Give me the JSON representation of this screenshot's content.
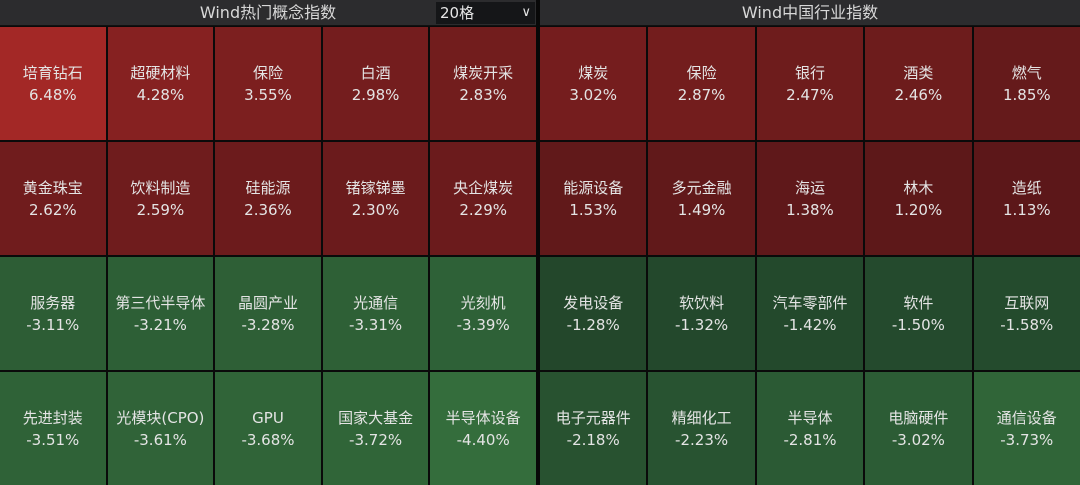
{
  "left": {
    "title": "Wind热门概念指数",
    "dropdown": {
      "selected": "20格"
    },
    "cells": [
      {
        "name": "培育钻石",
        "value": "6.48%"
      },
      {
        "name": "超硬材料",
        "value": "4.28%"
      },
      {
        "name": "保险",
        "value": "3.55%"
      },
      {
        "name": "白酒",
        "value": "2.98%"
      },
      {
        "name": "煤炭开采",
        "value": "2.83%"
      },
      {
        "name": "黄金珠宝",
        "value": "2.62%"
      },
      {
        "name": "饮料制造",
        "value": "2.59%"
      },
      {
        "name": "硅能源",
        "value": "2.36%"
      },
      {
        "name": "锗镓锑墨",
        "value": "2.30%"
      },
      {
        "name": "央企煤炭",
        "value": "2.29%"
      },
      {
        "name": "服务器",
        "value": "-3.11%"
      },
      {
        "name": "第三代半导体",
        "value": "-3.21%"
      },
      {
        "name": "晶圆产业",
        "value": "-3.28%"
      },
      {
        "name": "光通信",
        "value": "-3.31%"
      },
      {
        "name": "光刻机",
        "value": "-3.39%"
      },
      {
        "name": "先进封装",
        "value": "-3.51%"
      },
      {
        "name": "光模块(CPO)",
        "value": "-3.61%"
      },
      {
        "name": "GPU",
        "value": "-3.68%"
      },
      {
        "name": "国家大基金",
        "value": "-3.72%"
      },
      {
        "name": "半导体设备",
        "value": "-4.40%"
      }
    ]
  },
  "right": {
    "title": "Wind中国行业指数",
    "cells": [
      {
        "name": "煤炭",
        "value": "3.02%"
      },
      {
        "name": "保险",
        "value": "2.87%"
      },
      {
        "name": "银行",
        "value": "2.47%"
      },
      {
        "name": "酒类",
        "value": "2.46%"
      },
      {
        "name": "燃气",
        "value": "1.85%"
      },
      {
        "name": "能源设备",
        "value": "1.53%"
      },
      {
        "name": "多元金融",
        "value": "1.49%"
      },
      {
        "name": "海运",
        "value": "1.38%"
      },
      {
        "name": "林木",
        "value": "1.20%"
      },
      {
        "name": "造纸",
        "value": "1.13%"
      },
      {
        "name": "发电设备",
        "value": "-1.28%"
      },
      {
        "name": "软饮料",
        "value": "-1.32%"
      },
      {
        "name": "汽车零部件",
        "value": "-1.42%"
      },
      {
        "name": "软件",
        "value": "-1.50%"
      },
      {
        "name": "互联网",
        "value": "-1.58%"
      },
      {
        "name": "电子元器件",
        "value": "-2.18%"
      },
      {
        "name": "精细化工",
        "value": "-2.23%"
      },
      {
        "name": "半导体",
        "value": "-2.81%"
      },
      {
        "name": "电脑硬件",
        "value": "-3.02%"
      },
      {
        "name": "通信设备",
        "value": "-3.73%"
      }
    ]
  },
  "colors": {
    "up_strong": "#a32826",
    "up_weak": "#5a1719",
    "down_strong": "#346d3c",
    "down_weak": "#21442a"
  }
}
